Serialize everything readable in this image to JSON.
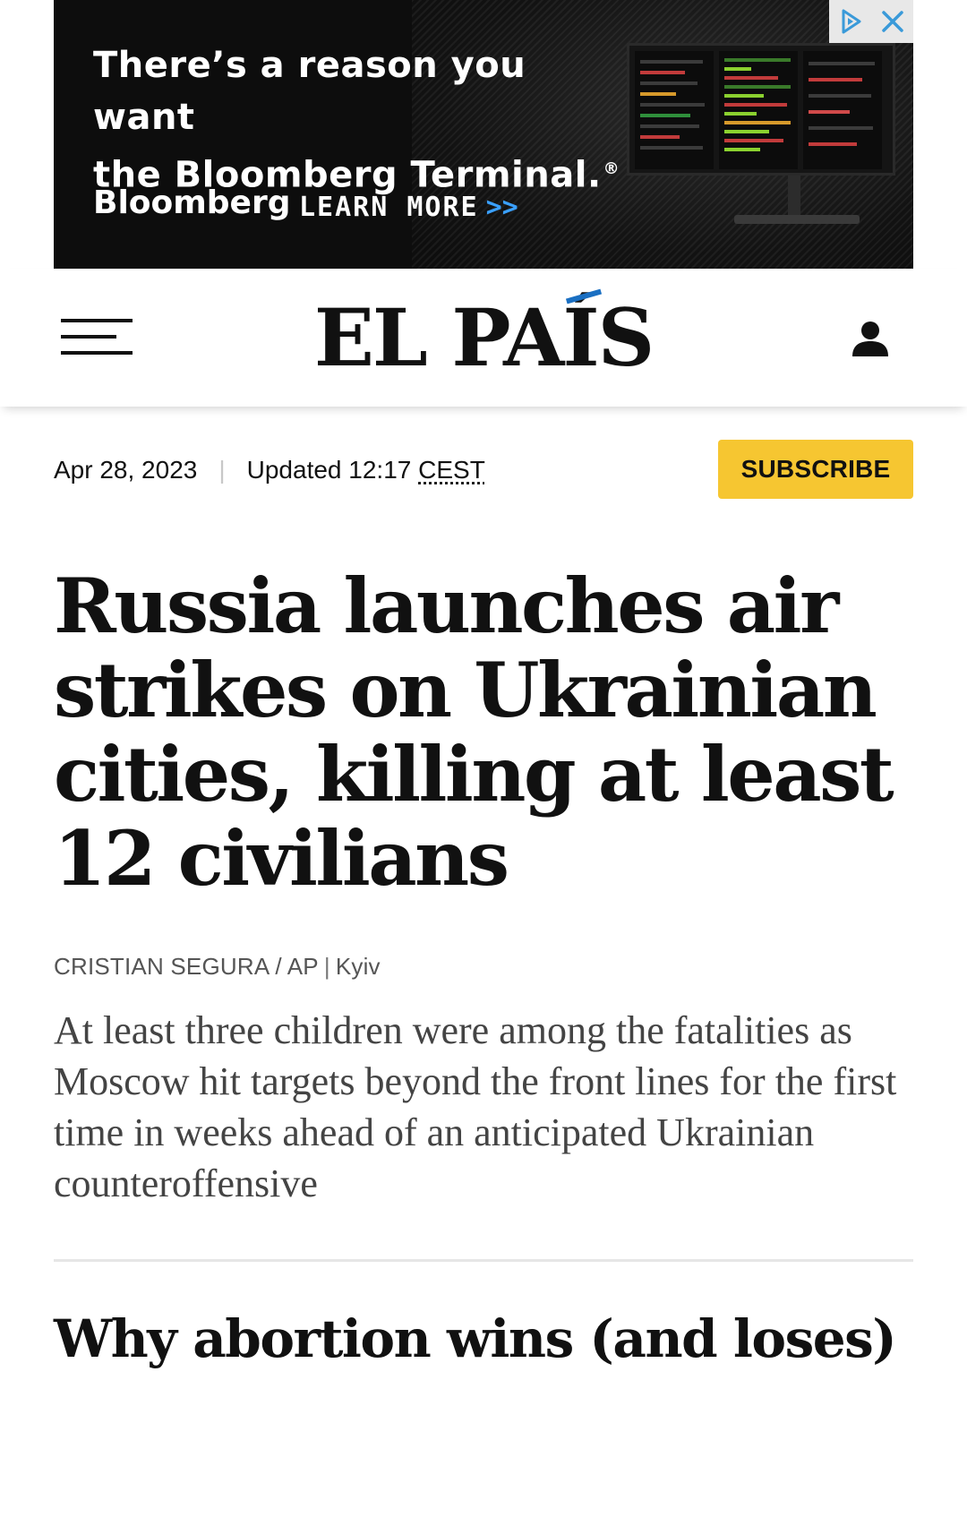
{
  "ad": {
    "headline_line1": "There’s a reason you want",
    "headline_line2": "the Bloomberg Terminal.",
    "registered_mark": "®",
    "brand": "Bloomberg",
    "cta": "LEARN MORE",
    "cta_arrow": ">>",
    "adchoices_icon": "adchoices-triangle-icon",
    "close_icon": "close-x-icon"
  },
  "header": {
    "menu_icon": "hamburger-menu-icon",
    "logo": "EL PAÍS",
    "user_icon": "user-account-icon"
  },
  "meta": {
    "date": "Apr 28, 2023",
    "separator": "|",
    "updated_label": "Updated 12:17",
    "timezone": "CEST",
    "subscribe_label": "SUBSCRIBE"
  },
  "article": {
    "headline": "Russia launches air strikes on Ukrainian cities, killing at least 12 civilians",
    "author": "CRISTIAN SEGURA / AP",
    "pipe": "|",
    "location": "Kyiv",
    "summary": "At least three children were among the fatalities as Moscow hit targets beyond the front lines for the first time in weeks ahead of an anticipated Ukrainian counteroffensive"
  },
  "next_article": {
    "title": "Why abortion wins (and loses)"
  },
  "colors": {
    "subscribe_bg": "#f6c631",
    "logo_accent": "#1a6fc2",
    "ad_bg": "#0d0d0d",
    "ad_arrow": "#3aa0ff"
  }
}
